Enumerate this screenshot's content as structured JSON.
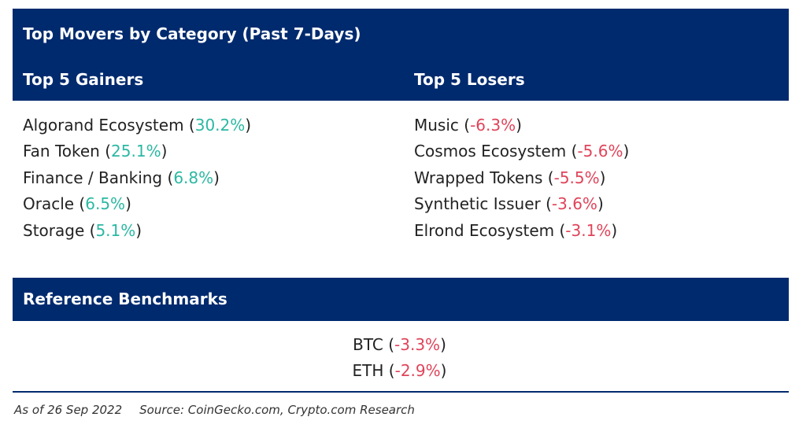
{
  "header": {
    "title": "Top Movers by Category (Past 7-Days)",
    "gainers_heading": "Top 5 Gainers",
    "losers_heading": "Top 5 Losers"
  },
  "gainers": [
    {
      "name": "Algorand Ecosystem",
      "change": "30.2%"
    },
    {
      "name": "Fan Token",
      "change": "25.1%"
    },
    {
      "name": "Finance / Banking",
      "change": "6.8%"
    },
    {
      "name": "Oracle",
      "change": "6.5%"
    },
    {
      "name": "Storage",
      "change": "5.1%"
    }
  ],
  "losers": [
    {
      "name": "Music",
      "change": "-6.3%"
    },
    {
      "name": "Cosmos Ecosystem",
      "change": "-5.6%"
    },
    {
      "name": "Wrapped Tokens",
      "change": "-5.5%"
    },
    {
      "name": "Synthetic Issuer",
      "change": "-3.6%"
    },
    {
      "name": "Elrond Ecosystem",
      "change": "-3.1%"
    }
  ],
  "benchmarks": {
    "title": "Reference Benchmarks",
    "items": [
      {
        "name": "BTC",
        "change": "-3.3%"
      },
      {
        "name": "ETH",
        "change": "-2.9%"
      }
    ]
  },
  "footer": {
    "date": "As of 26 Sep 2022",
    "source": "Source: CoinGecko.com, Crypto.com Research"
  },
  "colors": {
    "header_bg": "#002a6e",
    "positive": "#2bb8a3",
    "negative": "#e0445a"
  }
}
